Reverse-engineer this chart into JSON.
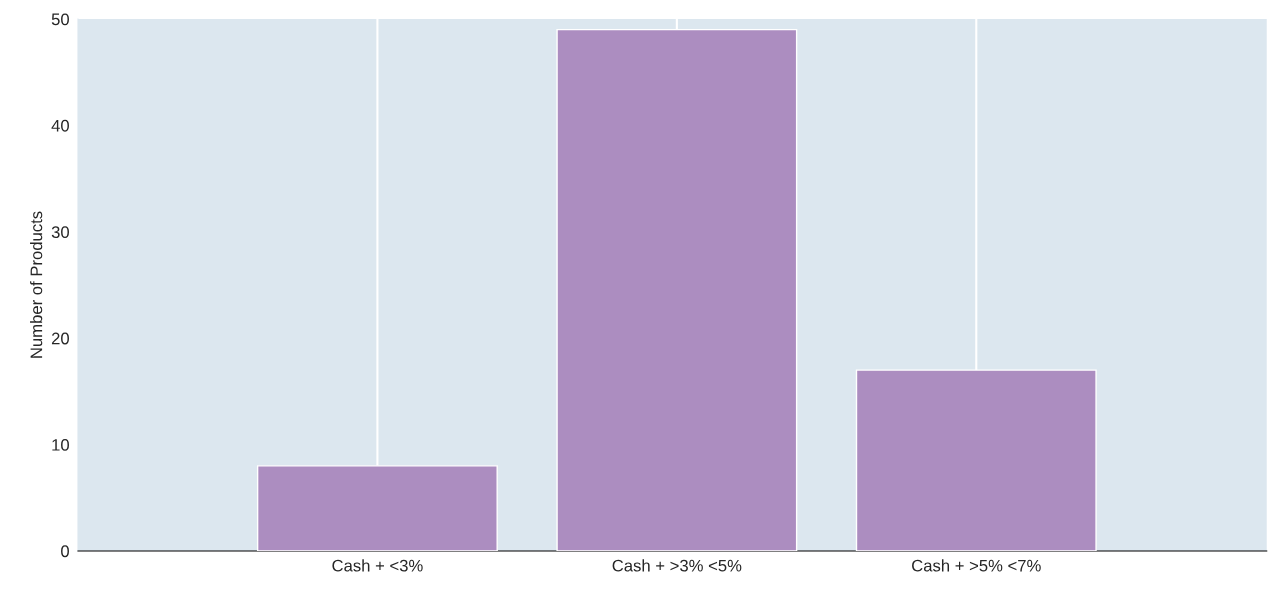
{
  "chart_data": {
    "type": "bar",
    "ylabel": "Number of Products",
    "categories": [
      "Cash + <3%",
      "Cash + >3% <5%",
      "Cash + >5% <7%"
    ],
    "values": [
      8,
      49,
      17
    ],
    "color": "#ac8dc0",
    "ylim": [
      0,
      50
    ],
    "yticks": [
      0,
      10,
      20,
      30,
      40,
      50
    ],
    "grid": "x"
  }
}
